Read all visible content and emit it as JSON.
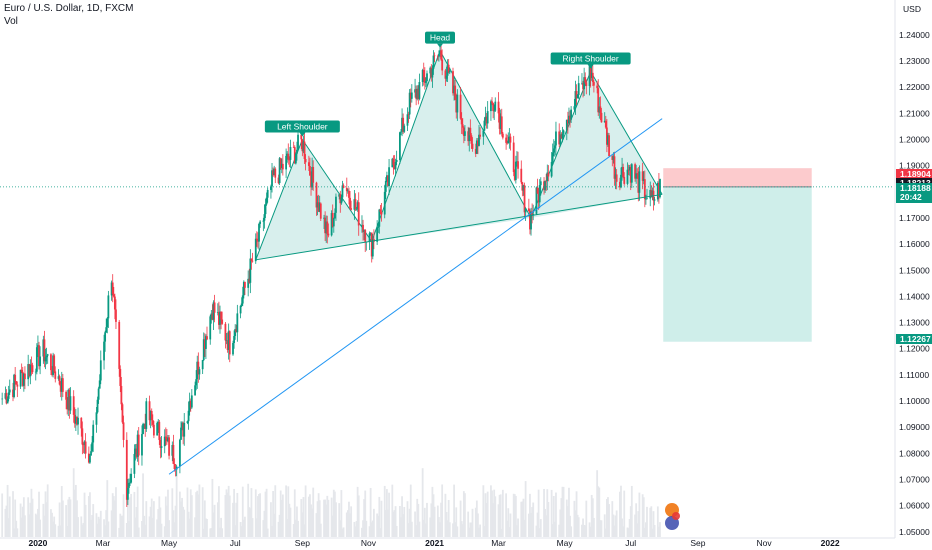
{
  "header": {
    "symbol_title": "Euro / U.S. Dollar, 1D, FXCM",
    "volume_label": "Vol"
  },
  "chart_data": {
    "type": "candlestick",
    "currency": "USD",
    "x_ticks": [
      "2020",
      "Mar",
      "May",
      "Jul",
      "Sep",
      "Nov",
      "2021",
      "Mar",
      "May",
      "Jul",
      "Sep",
      "Nov",
      "2022"
    ],
    "y_ticks": [
      "1.05000",
      "1.06000",
      "1.07000",
      "1.08000",
      "1.09000",
      "1.10000",
      "1.11000",
      "1.12000",
      "1.13000",
      "1.14000",
      "1.15000",
      "1.16000",
      "1.17000",
      "1.18000",
      "1.19000",
      "1.20000",
      "1.21000",
      "1.22000",
      "1.23000",
      "1.24000"
    ],
    "ylim": [
      1.048,
      1.248
    ],
    "xlim": [
      "2019-11-27",
      "2022-02-28"
    ],
    "price_path": [
      [
        "2019-11-29",
        1.101
      ],
      [
        "2019-12-20",
        1.111
      ],
      [
        "2020-01-06",
        1.119
      ],
      [
        "2020-01-20",
        1.109
      ],
      [
        "2020-02-19",
        1.079
      ],
      [
        "2020-03-09",
        1.149
      ],
      [
        "2020-03-23",
        1.067
      ],
      [
        "2020-04-10",
        1.095
      ],
      [
        "2020-05-07",
        1.078
      ],
      [
        "2020-06-10",
        1.136
      ],
      [
        "2020-06-26",
        1.122
      ],
      [
        "2020-07-20",
        1.158
      ],
      [
        "2020-08-05",
        1.185
      ],
      [
        "2020-09-01",
        1.199
      ],
      [
        "2020-09-24",
        1.163
      ],
      [
        "2020-10-09",
        1.184
      ],
      [
        "2020-11-04",
        1.16
      ],
      [
        "2020-12-08",
        1.213
      ],
      [
        "2021-01-06",
        1.233
      ],
      [
        "2021-02-05",
        1.196
      ],
      [
        "2021-02-25",
        1.216
      ],
      [
        "2021-03-30",
        1.17
      ],
      [
        "2021-04-30",
        1.207
      ],
      [
        "2021-05-25",
        1.226
      ],
      [
        "2021-06-18",
        1.186
      ],
      [
        "2021-06-30",
        1.189
      ],
      [
        "2021-07-20",
        1.176
      ],
      [
        "2021-07-28",
        1.182
      ]
    ],
    "patterns": {
      "left_shoulder_label": "Left Shoulder",
      "head_label": "Head",
      "right_shoulder_label": "Right Shoulder",
      "points": [
        [
          "2020-07-20",
          1.154
        ],
        [
          "2020-09-01",
          1.2
        ],
        [
          "2020-11-04",
          1.161
        ],
        [
          "2021-01-06",
          1.234
        ],
        [
          "2021-03-31",
          1.17
        ],
        [
          "2021-05-25",
          1.226
        ],
        [
          "2021-07-30",
          1.179
        ]
      ],
      "neckline": [
        [
          "2020-07-20",
          1.154
        ],
        [
          "2021-07-30",
          1.179
        ]
      ],
      "trendline": [
        [
          "2020-05-01",
          1.072
        ],
        [
          "2021-07-30",
          1.208
        ]
      ]
    },
    "position": {
      "start": "2021-07-31",
      "end": "2021-12-15",
      "stop": 1.18904,
      "entry": 1.18188,
      "target": 1.12267
    },
    "price_labels": [
      {
        "text": "1.18904",
        "value": 1.18904,
        "color": "#f23645"
      },
      {
        "text": "1.18213",
        "value": 1.18213,
        "color": "#131722"
      },
      {
        "text": "1.18188",
        "value": 1.18188,
        "color": "#089981",
        "sub": "20:42"
      },
      {
        "text": "1.12267",
        "value": 1.12267,
        "color": "#089981"
      }
    ],
    "colors": {
      "up": "#089981",
      "down": "#f23645",
      "trendline": "#2196f3",
      "pattern_fill": "#b2dfdb",
      "pattern_line": "#089981",
      "stop_zone": "#fccbcd",
      "target_zone": "#cfeeea",
      "volume": "#e5e7eb"
    }
  }
}
